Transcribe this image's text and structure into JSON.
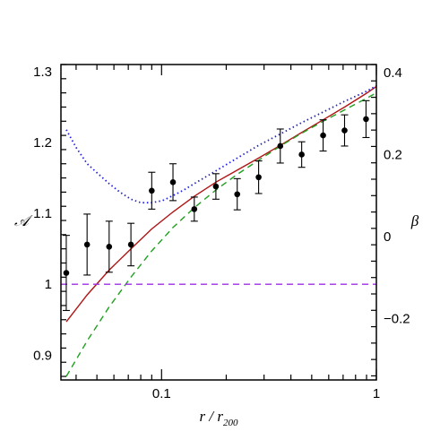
{
  "chart_data": {
    "type": "line",
    "title": "",
    "xlabel": "r / r",
    "xlabel_sub": "200",
    "ylabel_left": "𝒜",
    "ylabel_right": "β",
    "xscale": "log",
    "xlim": [
      0.034,
      1.0
    ],
    "ylim_left": [
      0.865,
      1.31
    ],
    "ylim_right": [
      -0.35,
      0.42
    ],
    "grid": false,
    "x_ticks": [
      {
        "value": 0.1,
        "label": "0.1"
      },
      {
        "value": 1.0,
        "label": "1"
      }
    ],
    "y_left_ticks": [
      {
        "value": 1.3,
        "label": "1.3"
      },
      {
        "value": 1.2,
        "label": "1.2"
      },
      {
        "value": 1.1,
        "label": "1.1"
      },
      {
        "value": 1.0,
        "label": "1"
      },
      {
        "value": 0.9,
        "label": "0.9"
      }
    ],
    "y_right_ticks": [
      {
        "value": 0.4,
        "label": "0.4"
      },
      {
        "value": 0.2,
        "label": "0.2"
      },
      {
        "value": 0.0,
        "label": "0"
      },
      {
        "value": -0.2,
        "label": "−0.2"
      }
    ],
    "points": [
      {
        "x": 0.036,
        "y": 1.016,
        "err": 0.053
      },
      {
        "x": 0.045,
        "y": 1.056,
        "err": 0.043
      },
      {
        "x": 0.057,
        "y": 1.053,
        "err": 0.036
      },
      {
        "x": 0.072,
        "y": 1.056,
        "err": 0.03
      },
      {
        "x": 0.09,
        "y": 1.132,
        "err": 0.026
      },
      {
        "x": 0.113,
        "y": 1.144,
        "err": 0.026
      },
      {
        "x": 0.142,
        "y": 1.106,
        "err": 0.017
      },
      {
        "x": 0.179,
        "y": 1.138,
        "err": 0.018
      },
      {
        "x": 0.225,
        "y": 1.127,
        "err": 0.022
      },
      {
        "x": 0.283,
        "y": 1.151,
        "err": 0.023
      },
      {
        "x": 0.357,
        "y": 1.195,
        "err": 0.024
      },
      {
        "x": 0.449,
        "y": 1.183,
        "err": 0.018
      },
      {
        "x": 0.565,
        "y": 1.21,
        "err": 0.022
      },
      {
        "x": 0.711,
        "y": 1.217,
        "err": 0.022
      },
      {
        "x": 0.895,
        "y": 1.233,
        "err": 0.026
      }
    ],
    "series": [
      {
        "color": "#b01515",
        "dash": "solid",
        "axis": "left",
        "x": [
          0.036,
          0.045,
          0.057,
          0.072,
          0.09,
          0.113,
          0.142,
          0.179,
          0.225,
          0.283,
          0.357,
          0.449,
          0.565,
          0.711,
          0.895,
          1.0
        ],
        "y": [
          0.947,
          0.985,
          1.02,
          1.05,
          1.078,
          1.102,
          1.124,
          1.144,
          1.161,
          1.178,
          1.196,
          1.214,
          1.232,
          1.25,
          1.269,
          1.279
        ]
      },
      {
        "color": "#1fa01f",
        "dash": "dashed",
        "axis": "left",
        "x": [
          0.036,
          0.045,
          0.057,
          0.072,
          0.09,
          0.113,
          0.142,
          0.179,
          0.225,
          0.283,
          0.357,
          0.449,
          0.565,
          0.711,
          0.895,
          1.0
        ],
        "y": [
          0.87,
          0.92,
          0.968,
          1.01,
          1.047,
          1.08,
          1.108,
          1.133,
          1.155,
          1.175,
          1.195,
          1.213,
          1.23,
          1.246,
          1.262,
          1.27
        ]
      },
      {
        "color": "#2020e0",
        "dash": "dotted",
        "axis": "left",
        "x": [
          0.036,
          0.04,
          0.045,
          0.051,
          0.057,
          0.064,
          0.072,
          0.08,
          0.09,
          0.101,
          0.113,
          0.127,
          0.142,
          0.179,
          0.225,
          0.283,
          0.357,
          0.449,
          0.565,
          0.711,
          0.895,
          1.0
        ],
        "y": [
          1.218,
          1.193,
          1.17,
          1.155,
          1.142,
          1.13,
          1.12,
          1.115,
          1.115,
          1.118,
          1.125,
          1.133,
          1.142,
          1.16,
          1.178,
          1.196,
          1.212,
          1.228,
          1.243,
          1.258,
          1.272,
          1.28
        ]
      },
      {
        "color": "#9b30e0",
        "dash": "dashed",
        "axis": "left",
        "x": [
          0.034,
          1.0
        ],
        "y": [
          1.0,
          1.0
        ]
      }
    ]
  }
}
